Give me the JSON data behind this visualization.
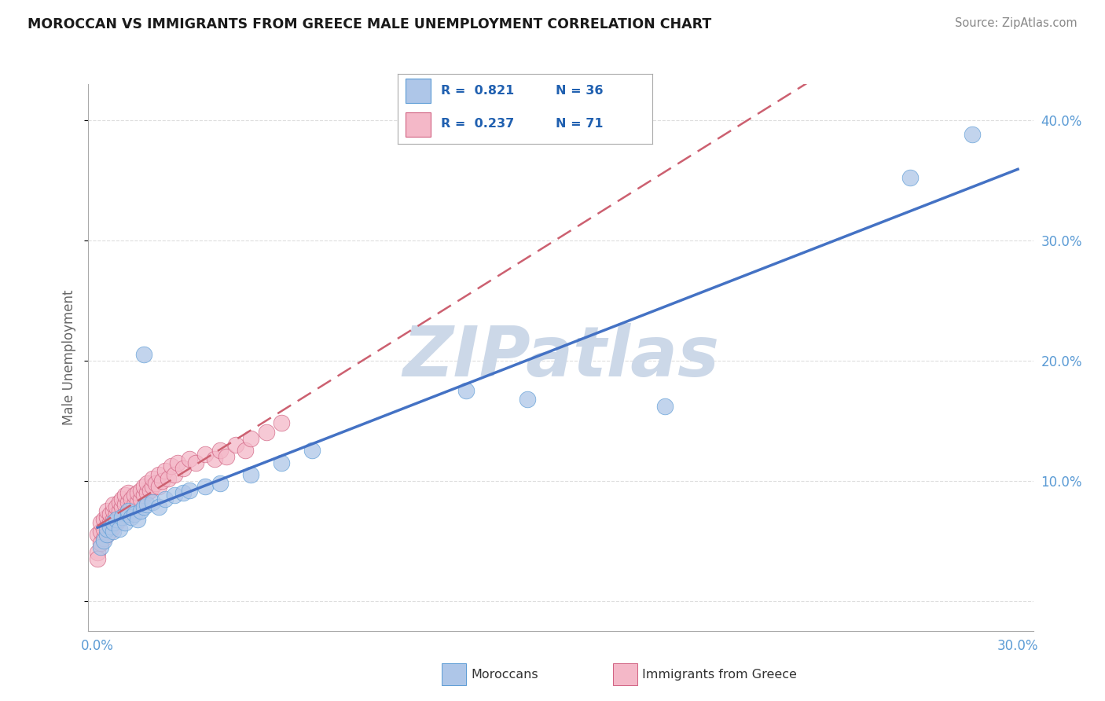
{
  "title": "MOROCCAN VS IMMIGRANTS FROM GREECE MALE UNEMPLOYMENT CORRELATION CHART",
  "source": "Source: ZipAtlas.com",
  "ylabel": "Male Unemployment",
  "xlim": [
    -0.003,
    0.305
  ],
  "ylim": [
    -0.025,
    0.43
  ],
  "xticks": [
    0.0,
    0.05,
    0.1,
    0.15,
    0.2,
    0.25,
    0.3
  ],
  "xticklabels": [
    "0.0%",
    "",
    "",
    "",
    "",
    "",
    "30.0%"
  ],
  "yticks_right": [
    0.0,
    0.1,
    0.2,
    0.3,
    0.4
  ],
  "yticklabels_right": [
    "",
    "10.0%",
    "20.0%",
    "30.0%",
    "40.0%"
  ],
  "moroccans_R": 0.821,
  "moroccans_N": 36,
  "greece_R": 0.237,
  "greece_N": 71,
  "blue_fill": "#aec6e8",
  "blue_edge": "#5b9bd5",
  "pink_fill": "#f4b8c8",
  "pink_edge": "#d06080",
  "blue_line": "#4472c4",
  "pink_line": "#cc6070",
  "grid_color": "#dddddd",
  "watermark_color": "#ccd8e8",
  "title_color": "#1a1a1a",
  "source_color": "#888888",
  "tick_color": "#5b9bd5",
  "legend_text_color": "#2060b0",
  "moroccans_x": [
    0.001,
    0.002,
    0.003,
    0.003,
    0.004,
    0.005,
    0.005,
    0.006,
    0.007,
    0.008,
    0.009,
    0.01,
    0.01,
    0.011,
    0.012,
    0.013,
    0.014,
    0.015,
    0.016,
    0.018,
    0.02,
    0.022,
    0.025,
    0.028,
    0.03,
    0.035,
    0.04,
    0.05,
    0.06,
    0.07,
    0.015,
    0.12,
    0.14,
    0.185,
    0.265,
    0.285
  ],
  "moroccans_y": [
    0.045,
    0.05,
    0.055,
    0.06,
    0.062,
    0.058,
    0.065,
    0.068,
    0.06,
    0.07,
    0.065,
    0.072,
    0.075,
    0.07,
    0.072,
    0.068,
    0.075,
    0.078,
    0.08,
    0.082,
    0.078,
    0.085,
    0.088,
    0.09,
    0.092,
    0.095,
    0.098,
    0.105,
    0.115,
    0.125,
    0.205,
    0.175,
    0.168,
    0.162,
    0.352,
    0.388
  ],
  "greece_x": [
    0.0,
    0.0,
    0.001,
    0.001,
    0.001,
    0.002,
    0.002,
    0.002,
    0.003,
    0.003,
    0.003,
    0.003,
    0.004,
    0.004,
    0.004,
    0.005,
    0.005,
    0.005,
    0.005,
    0.006,
    0.006,
    0.006,
    0.007,
    0.007,
    0.007,
    0.008,
    0.008,
    0.008,
    0.009,
    0.009,
    0.009,
    0.01,
    0.01,
    0.01,
    0.011,
    0.011,
    0.012,
    0.012,
    0.013,
    0.013,
    0.014,
    0.014,
    0.015,
    0.015,
    0.016,
    0.016,
    0.017,
    0.018,
    0.018,
    0.019,
    0.02,
    0.02,
    0.021,
    0.022,
    0.023,
    0.024,
    0.025,
    0.026,
    0.028,
    0.03,
    0.032,
    0.035,
    0.038,
    0.04,
    0.042,
    0.045,
    0.048,
    0.05,
    0.055,
    0.06,
    0.0
  ],
  "greece_y": [
    0.04,
    0.055,
    0.048,
    0.058,
    0.065,
    0.052,
    0.06,
    0.068,
    0.055,
    0.062,
    0.07,
    0.075,
    0.058,
    0.065,
    0.072,
    0.062,
    0.068,
    0.075,
    0.08,
    0.065,
    0.072,
    0.078,
    0.068,
    0.075,
    0.082,
    0.07,
    0.078,
    0.085,
    0.072,
    0.08,
    0.088,
    0.075,
    0.082,
    0.09,
    0.078,
    0.085,
    0.08,
    0.088,
    0.082,
    0.09,
    0.085,
    0.092,
    0.088,
    0.095,
    0.09,
    0.098,
    0.092,
    0.095,
    0.102,
    0.098,
    0.095,
    0.105,
    0.1,
    0.108,
    0.102,
    0.112,
    0.105,
    0.115,
    0.11,
    0.118,
    0.115,
    0.122,
    0.118,
    0.125,
    0.12,
    0.13,
    0.125,
    0.135,
    0.14,
    0.148,
    0.035
  ]
}
